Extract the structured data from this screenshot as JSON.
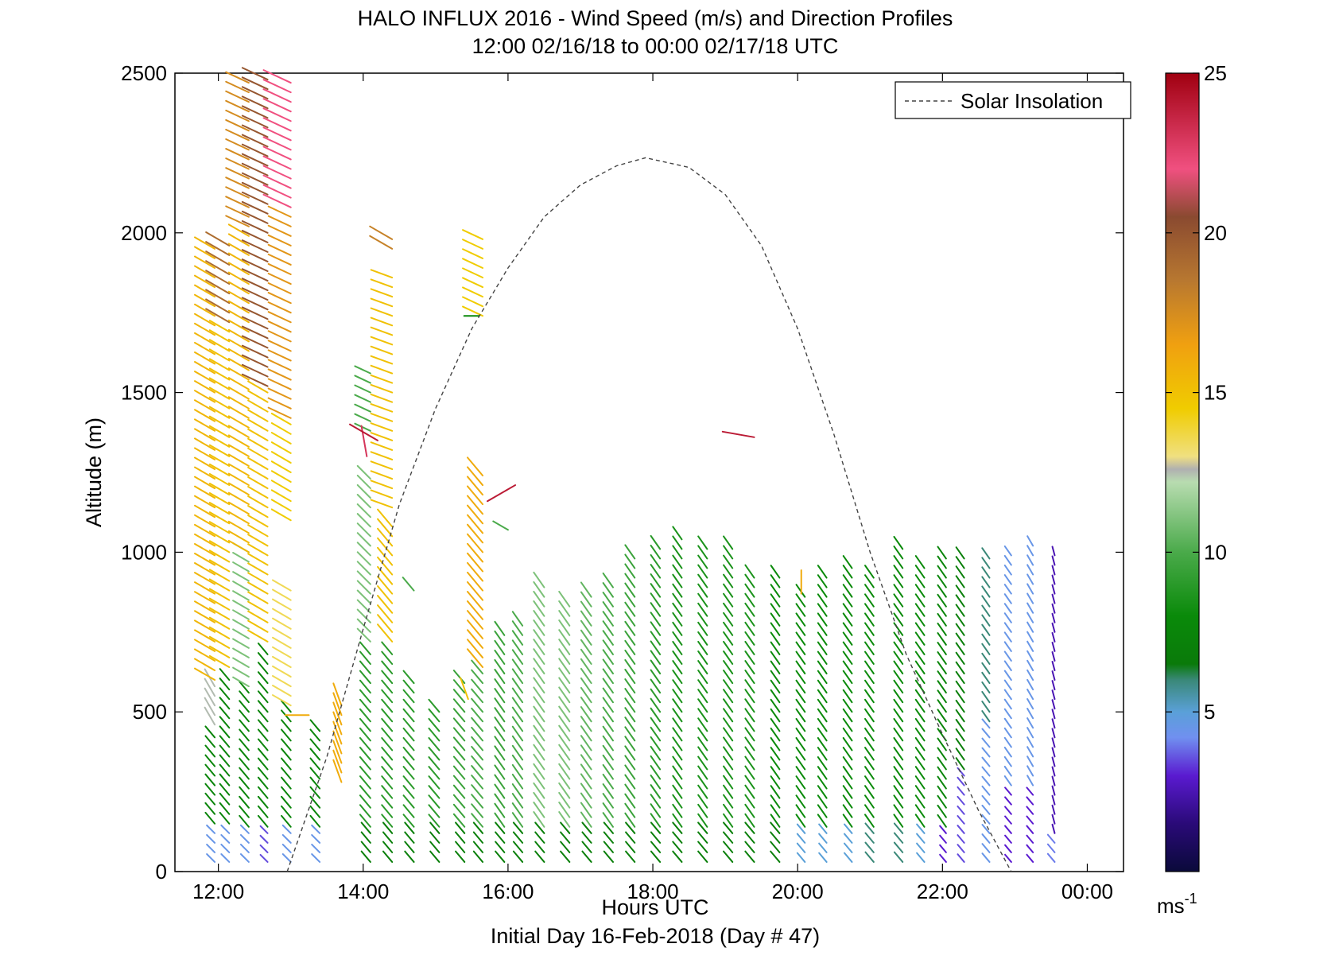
{
  "chart_data": {
    "type": "wind-barb-profile",
    "title": "HALO INFLUX 2016 - Wind Speed (m/s) and Direction Profiles",
    "subtitle": "12:00 02/16/18 to 00:00 02/17/18  UTC",
    "xlabel": "Hours UTC",
    "xlabel2": "Initial Day 16-Feb-2018 (Day # 47)",
    "ylabel": "Altitude (m)",
    "xlim_hours": [
      11.4,
      24.5
    ],
    "ylim": [
      0,
      2500
    ],
    "x_ticks": [
      {
        "value": 12,
        "label": "12:00"
      },
      {
        "value": 14,
        "label": "14:00"
      },
      {
        "value": 16,
        "label": "16:00"
      },
      {
        "value": 18,
        "label": "18:00"
      },
      {
        "value": 20,
        "label": "20:00"
      },
      {
        "value": 22,
        "label": "22:00"
      },
      {
        "value": 24,
        "label": "00:00"
      }
    ],
    "y_ticks": [
      {
        "value": 0,
        "label": "0"
      },
      {
        "value": 500,
        "label": "500"
      },
      {
        "value": 1000,
        "label": "1000"
      },
      {
        "value": 1500,
        "label": "1500"
      },
      {
        "value": 2000,
        "label": "2000"
      },
      {
        "value": 2500,
        "label": "2500"
      }
    ],
    "legend": {
      "entries": [
        "Solar Insolation"
      ],
      "position": "top-right"
    },
    "solar_insolation_curve": {
      "style": "dashed",
      "x": [
        12.95,
        13.5,
        14.0,
        14.5,
        15.0,
        15.5,
        16.0,
        16.5,
        17.0,
        17.5,
        17.9,
        18.5,
        19.0,
        19.5,
        20.0,
        20.5,
        21.0,
        21.5,
        22.0,
        22.5,
        22.95
      ],
      "y": [
        0,
        360,
        760,
        1150,
        1450,
        1700,
        1890,
        2050,
        2150,
        2210,
        2235,
        2205,
        2120,
        1960,
        1700,
        1370,
        1000,
        680,
        430,
        190,
        0
      ]
    },
    "colorbar": {
      "label": "ms",
      "label_exponent": "-1",
      "range": [
        0,
        25
      ],
      "ticks": [
        {
          "value": 5,
          "label": "5"
        },
        {
          "value": 10,
          "label": "10"
        },
        {
          "value": 15,
          "label": "15"
        },
        {
          "value": 20,
          "label": "20"
        },
        {
          "value": 25,
          "label": "25"
        }
      ],
      "stops": [
        {
          "v": 0,
          "c": "#0a0a3a"
        },
        {
          "v": 1.5,
          "c": "#2a0a78"
        },
        {
          "v": 3,
          "c": "#5a1ad0"
        },
        {
          "v": 4.2,
          "c": "#7090f0"
        },
        {
          "v": 5,
          "c": "#5aa0d8"
        },
        {
          "v": 6,
          "c": "#3a8878"
        },
        {
          "v": 6.5,
          "c": "#0a7a0a"
        },
        {
          "v": 8,
          "c": "#0a8a0a"
        },
        {
          "v": 10,
          "c": "#4aaa4a"
        },
        {
          "v": 12.2,
          "c": "#b8dcb0"
        },
        {
          "v": 12.6,
          "c": "#b0b0b0"
        },
        {
          "v": 13,
          "c": "#f0e080"
        },
        {
          "v": 14.5,
          "c": "#f0cc00"
        },
        {
          "v": 16.5,
          "c": "#f0a010"
        },
        {
          "v": 18.5,
          "c": "#b87830"
        },
        {
          "v": 20.5,
          "c": "#8a4a30"
        },
        {
          "v": 22,
          "c": "#f05080"
        },
        {
          "v": 25,
          "c": "#a00010"
        }
      ]
    },
    "profiles": [
      {
        "t": 11.95,
        "segments": [
          {
            "z0": 30,
            "z1": 130,
            "spd": 4.5,
            "dir": 315
          },
          {
            "z0": 150,
            "z1": 440,
            "spd": 7.5,
            "dir": 320
          },
          {
            "z0": 460,
            "z1": 600,
            "spd": 12.5,
            "dir": 330
          },
          {
            "z0": 600,
            "z1": 1950,
            "spd": 15.5,
            "dir": 300
          }
        ]
      },
      {
        "t": 12.15,
        "segments": [
          {
            "z0": 30,
            "z1": 130,
            "spd": 4.5,
            "dir": 315
          },
          {
            "z0": 150,
            "z1": 620,
            "spd": 7.5,
            "dir": 320
          },
          {
            "z0": 640,
            "z1": 1700,
            "spd": 15,
            "dir": 300
          },
          {
            "z0": 1720,
            "z1": 1980,
            "spd": 19,
            "dir": 300
          }
        ]
      },
      {
        "t": 12.42,
        "segments": [
          {
            "z0": 30,
            "z1": 120,
            "spd": 4.5,
            "dir": 315
          },
          {
            "z0": 140,
            "z1": 560,
            "spd": 7.5,
            "dir": 320
          },
          {
            "z0": 580,
            "z1": 1000,
            "spd": 11,
            "dir": 300
          },
          {
            "z0": 1000,
            "z1": 2000,
            "spd": 15.5,
            "dir": 300
          },
          {
            "z0": 2020,
            "z1": 2480,
            "spd": 17.5,
            "dir": 295
          }
        ]
      },
      {
        "t": 12.68,
        "segments": [
          {
            "z0": 30,
            "z1": 120,
            "spd": 3.5,
            "dir": 315
          },
          {
            "z0": 140,
            "z1": 700,
            "spd": 7.5,
            "dir": 320
          },
          {
            "z0": 720,
            "z1": 1500,
            "spd": 15,
            "dir": 300
          },
          {
            "z0": 1520,
            "z1": 2480,
            "spd": 20,
            "dir": 295
          }
        ]
      },
      {
        "t": 13.0,
        "segments": [
          {
            "z0": 30,
            "z1": 120,
            "spd": 4.5,
            "dir": 315
          },
          {
            "z0": 140,
            "z1": 500,
            "spd": 7.5,
            "dir": 320
          },
          {
            "z0": 520,
            "z1": 900,
            "spd": 13.5,
            "dir": 300
          },
          {
            "z0": 1100,
            "z1": 1400,
            "spd": 14.5,
            "dir": 300
          },
          {
            "z0": 1420,
            "z1": 2050,
            "spd": 17,
            "dir": 295
          },
          {
            "z0": 2080,
            "z1": 2480,
            "spd": 22,
            "dir": 295
          }
        ]
      },
      {
        "t": 13.4,
        "segments": [
          {
            "z0": 30,
            "z1": 120,
            "spd": 4.5,
            "dir": 315
          },
          {
            "z0": 140,
            "z1": 450,
            "spd": 7.5,
            "dir": 320
          }
        ]
      },
      {
        "t": 13.7,
        "segments": [
          {
            "z0": 280,
            "z1": 520,
            "spd": 16,
            "dir": 340
          }
        ]
      },
      {
        "t": 14.1,
        "segments": [
          {
            "z0": 30,
            "z1": 120,
            "spd": 7,
            "dir": 320
          },
          {
            "z0": 140,
            "z1": 700,
            "spd": 9,
            "dir": 320
          },
          {
            "z0": 720,
            "z1": 1250,
            "spd": 11,
            "dir": 315
          },
          {
            "z0": 1380,
            "z1": 1580,
            "spd": 10,
            "dir": 295
          }
        ]
      },
      {
        "t": 14.4,
        "segments": [
          {
            "z0": 30,
            "z1": 120,
            "spd": 7,
            "dir": 320
          },
          {
            "z0": 140,
            "z1": 700,
            "spd": 9,
            "dir": 320
          },
          {
            "z0": 720,
            "z1": 1100,
            "spd": 15,
            "dir": 320
          },
          {
            "z0": 1140,
            "z1": 1870,
            "spd": 15,
            "dir": 290
          },
          {
            "z0": 1950,
            "z1": 1990,
            "spd": 18,
            "dir": 300
          }
        ]
      },
      {
        "t": 14.7,
        "segments": [
          {
            "z0": 30,
            "z1": 120,
            "spd": 7,
            "dir": 320
          },
          {
            "z0": 140,
            "z1": 600,
            "spd": 9,
            "dir": 320
          }
        ]
      },
      {
        "t": 15.05,
        "segments": [
          {
            "z0": 30,
            "z1": 120,
            "spd": 7,
            "dir": 320
          },
          {
            "z0": 140,
            "z1": 500,
            "spd": 9,
            "dir": 320
          }
        ]
      },
      {
        "t": 15.4,
        "segments": [
          {
            "z0": 30,
            "z1": 120,
            "spd": 7,
            "dir": 320
          },
          {
            "z0": 140,
            "z1": 600,
            "spd": 9.5,
            "dir": 320
          }
        ]
      },
      {
        "t": 15.65,
        "segments": [
          {
            "z0": 30,
            "z1": 120,
            "spd": 7,
            "dir": 320
          },
          {
            "z0": 140,
            "z1": 620,
            "spd": 10,
            "dir": 320
          },
          {
            "z0": 640,
            "z1": 1260,
            "spd": 16,
            "dir": 320
          },
          {
            "z0": 1740,
            "z1": 2000,
            "spd": 14.5,
            "dir": 295
          }
        ]
      },
      {
        "t": 15.95,
        "segments": [
          {
            "z0": 30,
            "z1": 120,
            "spd": 7,
            "dir": 320
          },
          {
            "z0": 140,
            "z1": 760,
            "spd": 9.5,
            "dir": 325
          }
        ]
      },
      {
        "t": 16.2,
        "segments": [
          {
            "z0": 30,
            "z1": 120,
            "spd": 7,
            "dir": 320
          },
          {
            "z0": 140,
            "z1": 780,
            "spd": 10,
            "dir": 325
          }
        ]
      },
      {
        "t": 16.5,
        "segments": [
          {
            "z0": 30,
            "z1": 120,
            "spd": 7,
            "dir": 320
          },
          {
            "z0": 140,
            "z1": 900,
            "spd": 11,
            "dir": 325
          }
        ]
      },
      {
        "t": 16.85,
        "segments": [
          {
            "z0": 30,
            "z1": 120,
            "spd": 7,
            "dir": 320
          },
          {
            "z0": 140,
            "z1": 850,
            "spd": 11,
            "dir": 325
          }
        ]
      },
      {
        "t": 17.15,
        "segments": [
          {
            "z0": 30,
            "z1": 120,
            "spd": 7,
            "dir": 320
          },
          {
            "z0": 140,
            "z1": 880,
            "spd": 10.5,
            "dir": 325
          }
        ]
      },
      {
        "t": 17.45,
        "segments": [
          {
            "z0": 30,
            "z1": 120,
            "spd": 7,
            "dir": 320
          },
          {
            "z0": 140,
            "z1": 900,
            "spd": 10,
            "dir": 325
          }
        ]
      },
      {
        "t": 17.75,
        "segments": [
          {
            "z0": 30,
            "z1": 120,
            "spd": 7,
            "dir": 320
          },
          {
            "z0": 140,
            "z1": 980,
            "spd": 9.5,
            "dir": 325
          }
        ]
      },
      {
        "t": 18.1,
        "segments": [
          {
            "z0": 30,
            "z1": 120,
            "spd": 7,
            "dir": 320
          },
          {
            "z0": 140,
            "z1": 1010,
            "spd": 9,
            "dir": 325
          }
        ]
      },
      {
        "t": 18.4,
        "segments": [
          {
            "z0": 30,
            "z1": 120,
            "spd": 7,
            "dir": 320
          },
          {
            "z0": 140,
            "z1": 1060,
            "spd": 8.5,
            "dir": 325
          }
        ]
      },
      {
        "t": 18.75,
        "segments": [
          {
            "z0": 30,
            "z1": 120,
            "spd": 7,
            "dir": 320
          },
          {
            "z0": 140,
            "z1": 1010,
            "spd": 8.5,
            "dir": 325
          }
        ]
      },
      {
        "t": 19.1,
        "segments": [
          {
            "z0": 30,
            "z1": 120,
            "spd": 7,
            "dir": 320
          },
          {
            "z0": 140,
            "z1": 1010,
            "spd": 8.5,
            "dir": 325
          }
        ]
      },
      {
        "t": 19.4,
        "segments": [
          {
            "z0": 30,
            "z1": 120,
            "spd": 7,
            "dir": 320
          },
          {
            "z0": 140,
            "z1": 920,
            "spd": 8.5,
            "dir": 325
          }
        ]
      },
      {
        "t": 19.75,
        "segments": [
          {
            "z0": 30,
            "z1": 120,
            "spd": 7,
            "dir": 320
          },
          {
            "z0": 140,
            "z1": 920,
            "spd": 8,
            "dir": 325
          }
        ]
      },
      {
        "t": 20.1,
        "segments": [
          {
            "z0": 30,
            "z1": 120,
            "spd": 5,
            "dir": 320
          },
          {
            "z0": 140,
            "z1": 880,
            "spd": 8,
            "dir": 325
          }
        ]
      },
      {
        "t": 20.4,
        "segments": [
          {
            "z0": 30,
            "z1": 120,
            "spd": 5,
            "dir": 320
          },
          {
            "z0": 140,
            "z1": 920,
            "spd": 8,
            "dir": 325
          }
        ]
      },
      {
        "t": 20.75,
        "segments": [
          {
            "z0": 30,
            "z1": 120,
            "spd": 5,
            "dir": 320
          },
          {
            "z0": 140,
            "z1": 960,
            "spd": 8,
            "dir": 325
          }
        ]
      },
      {
        "t": 21.05,
        "segments": [
          {
            "z0": 30,
            "z1": 120,
            "spd": 6,
            "dir": 320
          },
          {
            "z0": 140,
            "z1": 940,
            "spd": 8,
            "dir": 325
          }
        ]
      },
      {
        "t": 21.45,
        "segments": [
          {
            "z0": 30,
            "z1": 120,
            "spd": 6,
            "dir": 320
          },
          {
            "z0": 140,
            "z1": 1010,
            "spd": 8,
            "dir": 325
          }
        ]
      },
      {
        "t": 21.75,
        "segments": [
          {
            "z0": 30,
            "z1": 120,
            "spd": 5,
            "dir": 320
          },
          {
            "z0": 140,
            "z1": 960,
            "spd": 8,
            "dir": 325
          }
        ]
      },
      {
        "t": 22.05,
        "segments": [
          {
            "z0": 30,
            "z1": 120,
            "spd": 3,
            "dir": 320
          },
          {
            "z0": 140,
            "z1": 1000,
            "spd": 7.5,
            "dir": 325
          }
        ]
      },
      {
        "t": 22.3,
        "segments": [
          {
            "z0": 30,
            "z1": 300,
            "spd": 3.5,
            "dir": 320
          },
          {
            "z0": 320,
            "z1": 1000,
            "spd": 7,
            "dir": 325
          }
        ]
      },
      {
        "t": 22.65,
        "segments": [
          {
            "z0": 30,
            "z1": 450,
            "spd": 4.5,
            "dir": 320
          },
          {
            "z0": 470,
            "z1": 1000,
            "spd": 6,
            "dir": 325
          }
        ]
      },
      {
        "t": 22.95,
        "segments": [
          {
            "z0": 30,
            "z1": 250,
            "spd": 3,
            "dir": 320
          },
          {
            "z0": 270,
            "z1": 1000,
            "spd": 4.5,
            "dir": 325
          }
        ]
      },
      {
        "t": 23.25,
        "segments": [
          {
            "z0": 30,
            "z1": 250,
            "spd": 3,
            "dir": 320
          },
          {
            "z0": 270,
            "z1": 1030,
            "spd": 4.5,
            "dir": 330
          }
        ]
      },
      {
        "t": 23.55,
        "segments": [
          {
            "z0": 30,
            "z1": 100,
            "spd": 4,
            "dir": 320
          },
          {
            "z0": 120,
            "z1": 1000,
            "spd": 2.5,
            "dir": 345
          }
        ]
      }
    ],
    "isolated_barbs": [
      {
        "t": 13.25,
        "z": 490,
        "spd": 16,
        "dir": 270
      },
      {
        "t": 14.05,
        "z": 1300,
        "spd": 23,
        "dir": 350
      },
      {
        "t": 14.2,
        "z": 1350,
        "spd": 24,
        "dir": 300
      },
      {
        "t": 16.1,
        "z": 1210,
        "spd": 24,
        "dir": 240
      },
      {
        "t": 16.0,
        "z": 1070,
        "spd": 10,
        "dir": 300
      },
      {
        "t": 15.6,
        "z": 1740,
        "spd": 8,
        "dir": 270
      },
      {
        "t": 19.4,
        "z": 1360,
        "spd": 24,
        "dir": 280
      },
      {
        "t": 20.05,
        "z": 870,
        "spd": 16,
        "dir": 0
      },
      {
        "t": 14.7,
        "z": 880,
        "spd": 10,
        "dir": 320
      },
      {
        "t": 15.45,
        "z": 540,
        "spd": 15,
        "dir": 340
      }
    ]
  }
}
